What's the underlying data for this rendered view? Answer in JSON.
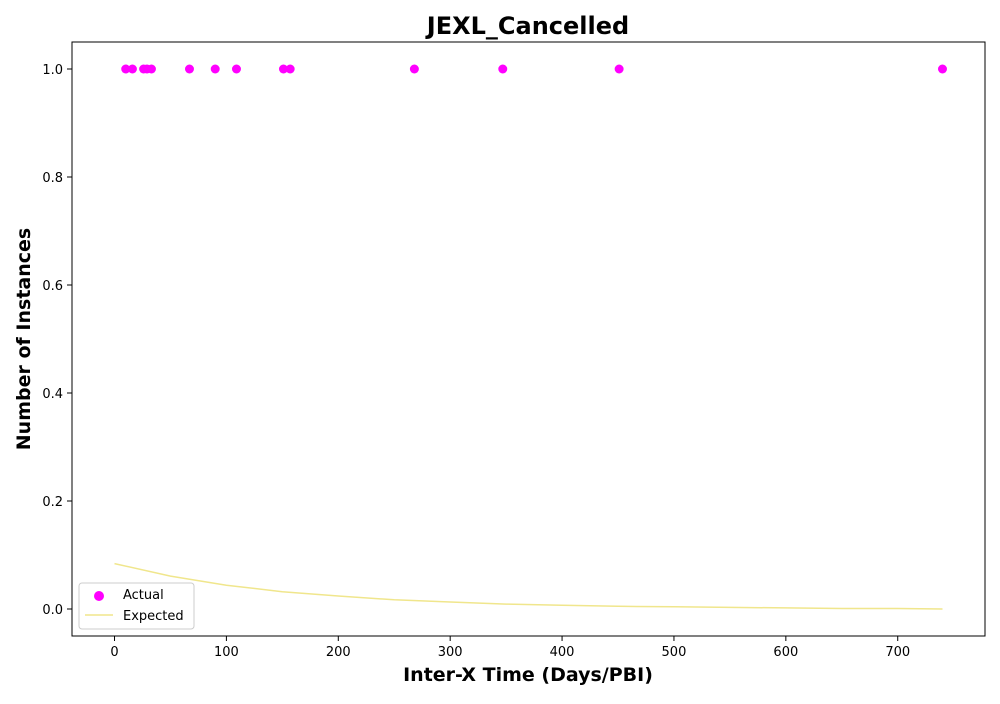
{
  "chart_data": {
    "type": "scatter",
    "title": "JEXL_Cancelled",
    "xlabel": "Inter-X Time (Days/PBI)",
    "ylabel": "Number of Instances",
    "xlim": [
      -38,
      778
    ],
    "ylim": [
      -0.05,
      1.05
    ],
    "x_ticks": [
      0,
      100,
      200,
      300,
      400,
      500,
      600,
      700
    ],
    "y_ticks": [
      0.0,
      0.2,
      0.4,
      0.6,
      0.8,
      1.0
    ],
    "x_tick_labels": [
      "0",
      "100",
      "200",
      "300",
      "400",
      "500",
      "600",
      "700"
    ],
    "y_tick_labels": [
      "0.0",
      "0.2",
      "0.4",
      "0.6",
      "0.8",
      "1.0"
    ],
    "grid": false,
    "legend_position": "lower-left",
    "series": [
      {
        "name": "Actual",
        "kind": "scatter",
        "color": "#ff00ff",
        "x": [
          10,
          16,
          26,
          29,
          33,
          67,
          90,
          109,
          151,
          157,
          268,
          347,
          451,
          740
        ],
        "y": [
          1,
          1,
          1,
          1,
          1,
          1,
          1,
          1,
          1,
          1,
          1,
          1,
          1,
          1
        ]
      },
      {
        "name": "Expected",
        "kind": "line",
        "color": "#f0e68c",
        "x": [
          0,
          50,
          100,
          150,
          200,
          250,
          300,
          350,
          400,
          450,
          500,
          550,
          600,
          650,
          700,
          740
        ],
        "y": [
          0.084,
          0.061,
          0.044,
          0.032,
          0.024,
          0.017,
          0.013,
          0.009,
          0.007,
          0.005,
          0.004,
          0.003,
          0.002,
          0.001,
          0.001,
          0.0
        ]
      }
    ]
  }
}
